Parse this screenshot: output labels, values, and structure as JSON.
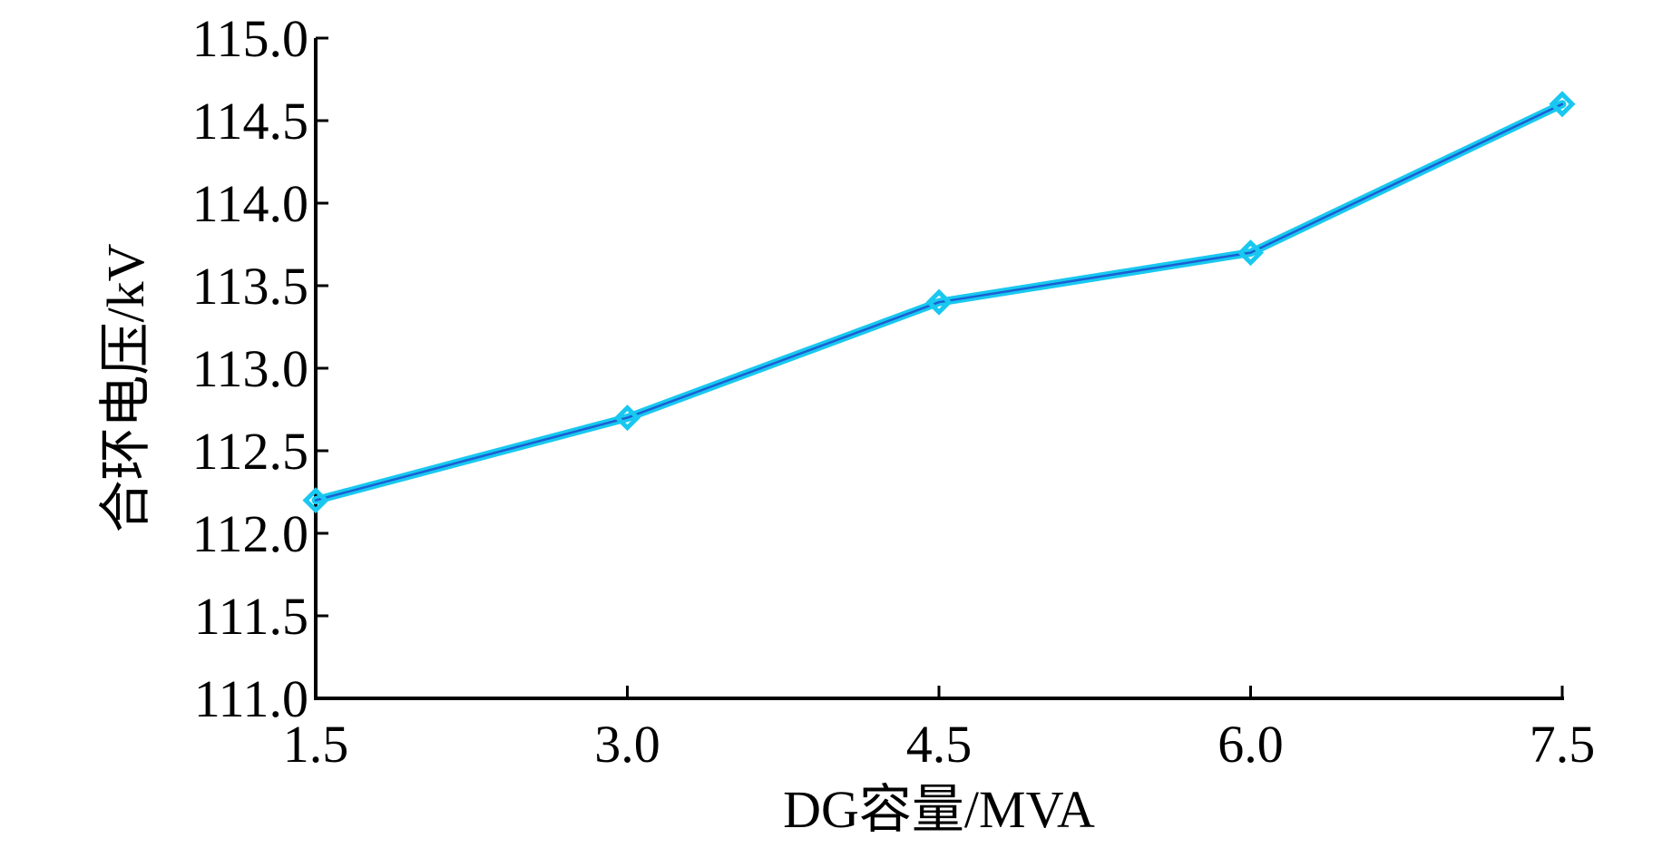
{
  "chart_data": {
    "type": "line",
    "xlabel": "DG容量/MVA",
    "ylabel": "合环电压/kV",
    "x": [
      1.5,
      3.0,
      4.5,
      6.0,
      7.5
    ],
    "x_tick_labels": [
      "1.5",
      "3.0",
      "4.5",
      "6.0",
      "7.5"
    ],
    "y_tick_values": [
      111.0,
      111.5,
      112.0,
      112.5,
      113.0,
      113.5,
      114.0,
      114.5,
      115.0
    ],
    "y_tick_labels": [
      "111.0",
      "111.5",
      "112.0",
      "112.5",
      "113.0",
      "113.5",
      "114.0",
      "114.5",
      "115.0"
    ],
    "xlim": [
      1.5,
      7.5
    ],
    "ylim": [
      111.0,
      115.0
    ],
    "grid": false,
    "marker": "diamond",
    "series": [
      {
        "values": [
          112.2,
          112.7,
          113.4,
          113.7,
          114.6
        ],
        "color": "#18c8f0"
      }
    ],
    "colors": {
      "axis": "#000000",
      "line_core": "#1e3cc8",
      "line_glow": "#18c8f0"
    }
  }
}
